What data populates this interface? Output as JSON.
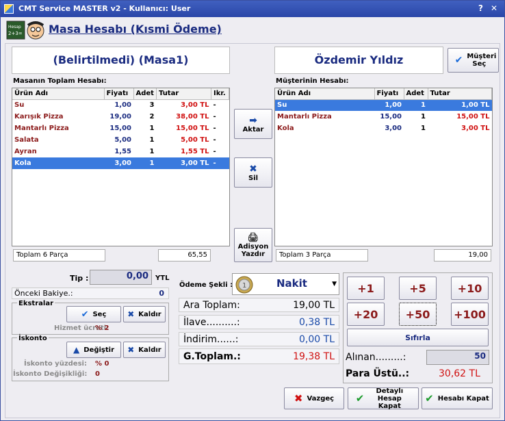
{
  "window": {
    "title": "CMT Service MASTER v2  -  Kullanıcı: User",
    "help": "?",
    "close": "✕"
  },
  "header": {
    "title": "Masa Hesabı (Kısmi Ödeme)",
    "logo_text": "Hesap 2+3="
  },
  "left": {
    "table_name": "(Belirtilmedi) (Masa1)",
    "section_label": "Masanın Toplam Hesabı:",
    "columns": [
      "Ürün Adı",
      "Fiyatı",
      "Adet",
      "Tutar",
      "Ikr."
    ],
    "rows": [
      {
        "name": "Su",
        "price": "1,00",
        "qty": "3",
        "total": "3,00 TL",
        "ikr": "-"
      },
      {
        "name": "Karışık Pizza",
        "price": "19,00",
        "qty": "2",
        "total": "38,00 TL",
        "ikr": "-"
      },
      {
        "name": "Mantarlı Pizza",
        "price": "15,00",
        "qty": "1",
        "total": "15,00 TL",
        "ikr": "-"
      },
      {
        "name": "Salata",
        "price": "5,00",
        "qty": "1",
        "total": "5,00 TL",
        "ikr": "-"
      },
      {
        "name": "Ayran",
        "price": "1,55",
        "qty": "1",
        "total": "1,55 TL",
        "ikr": "-"
      },
      {
        "name": "Kola",
        "price": "3,00",
        "qty": "1",
        "total": "3,00 TL",
        "ikr": "-"
      }
    ],
    "footer_count": "Toplam 6 Parça",
    "footer_total": "65,55"
  },
  "middle": {
    "aktar": "Aktar",
    "sil": "Sil",
    "adisyon": "Adisyon Yazdır"
  },
  "right": {
    "customer_name": "Özdemir Yıldız",
    "musteri_sec": "Müşteri Seç",
    "section_label": "Müşterinin Hesabı:",
    "columns": [
      "Ürün Adı",
      "Fiyatı",
      "Adet",
      "Tutar"
    ],
    "rows": [
      {
        "name": "Su",
        "price": "1,00",
        "qty": "1",
        "total": "1,00 TL"
      },
      {
        "name": "Mantarlı Pizza",
        "price": "15,00",
        "qty": "1",
        "total": "15,00 TL"
      },
      {
        "name": "Kola",
        "price": "3,00",
        "qty": "1",
        "total": "3,00 TL"
      }
    ],
    "footer_count": "Toplam 3 Parça",
    "footer_total": "19,00"
  },
  "bottom_left": {
    "tip_label": "Tip :",
    "tip_value": "0,00",
    "tip_unit": "YTL",
    "onceki_label": "Önceki Bakiye.:",
    "onceki_value": "0",
    "ekstralar_title": "Ekstralar",
    "sec": "Seç",
    "kaldir": "Kaldır",
    "hizmet_label": "Hizmet ücreti:",
    "hizmet_value": "% 2",
    "iskonto_title": "İskonto",
    "degistir": "Değiştir",
    "kaldir2": "Kaldır",
    "iskonto_yuzde_label": "İskonto yüzdesi:",
    "iskonto_yuzde_value": "% 0",
    "iskonto_degisiklik_label": "İskonto Değişikliği:",
    "iskonto_degisiklik_value": "0"
  },
  "payment": {
    "odeme_label": "Ödeme Şekli :",
    "odeme_value": "Nakit",
    "ara_toplam_label": "Ara Toplam:",
    "ara_toplam": "19,00 TL",
    "ilave_label": "İlave..........:",
    "ilave": "0,38 TL",
    "indirim_label": "İndirim......:",
    "indirim": "0,00 TL",
    "gtoplam_label": "G.Toplam.:",
    "gtoplam": "19,38 TL"
  },
  "cash": {
    "buttons": [
      "+1",
      "+5",
      "+10",
      "+20",
      "+50",
      "+100"
    ],
    "sifirla": "Sıfırla",
    "alinan_label": "Alınan.........:",
    "alinan": "50",
    "para_ustu_label": "Para Üstü..:",
    "para_ustu": "30,62 TL"
  },
  "actions": {
    "vazgec": "Vazgeç",
    "detayli": "Detaylı Hesap Kapat",
    "kapat": "Hesabı Kapat"
  }
}
